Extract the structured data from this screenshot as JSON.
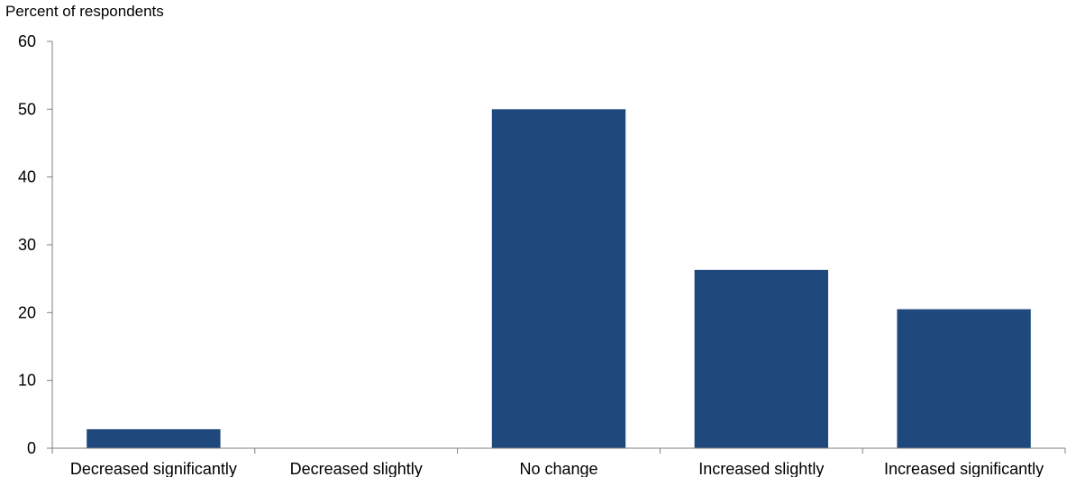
{
  "chart_data": {
    "type": "bar",
    "ylabel": "Percent of respondents",
    "categories": [
      "Decreased significantly",
      "Decreased slightly",
      "No change",
      "Increased slightly",
      "Increased significantly"
    ],
    "values": [
      2.8,
      0,
      50,
      26.3,
      20.5
    ],
    "ylim": [
      0,
      60
    ],
    "yticks": [
      0,
      10,
      20,
      30,
      40,
      50,
      60
    ],
    "bar_color": "#1f497d",
    "grid": false
  }
}
